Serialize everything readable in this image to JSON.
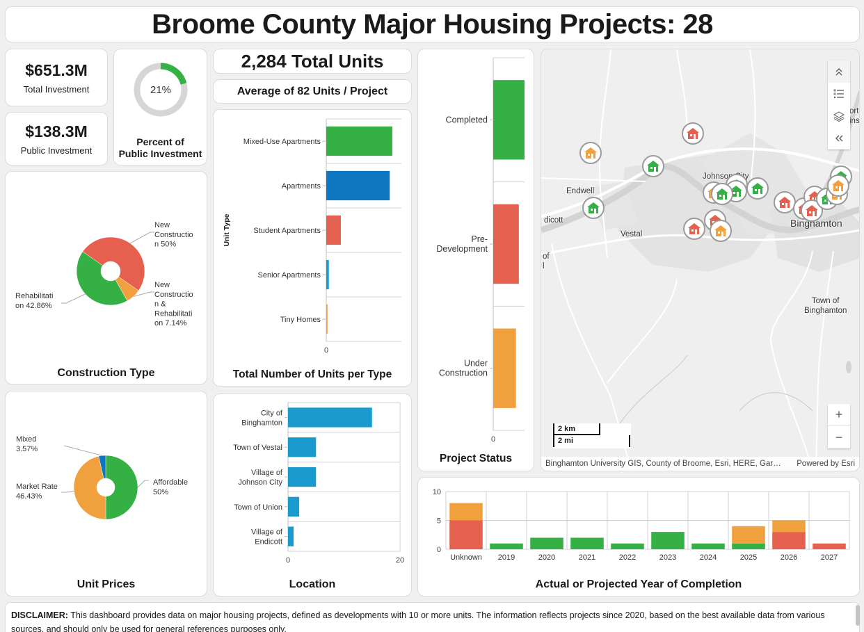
{
  "header": {
    "title": "Broome County Major Housing Projects: 28"
  },
  "colors": {
    "green": "#35b045",
    "red": "#e5604e",
    "orange": "#f0a03c",
    "blue": "#0e76c0",
    "teal": "#1a9bd0",
    "gray_ring": "#d6d6d6"
  },
  "kpis": {
    "total_investment": {
      "value": "$651.3M",
      "label": "Total Investment"
    },
    "public_investment": {
      "value": "$138.3M",
      "label": "Public Investment"
    },
    "percent_public": {
      "value": "21%",
      "fraction": 0.21,
      "label_line1": "Percent of",
      "label_line2": "Public Investment"
    },
    "total_units": {
      "value": "2,284 Total Units"
    },
    "average_units": {
      "value": "Average of 82 Units / Project"
    }
  },
  "chart_data": [
    {
      "id": "construction_type",
      "type": "pie",
      "title": "Construction Type",
      "slices": [
        {
          "label_lines": [
            "New",
            "Constructio",
            "n 50%"
          ],
          "label": "New Construction",
          "value": 50,
          "color": "#e5604e"
        },
        {
          "label_lines": [
            "New",
            "Constructio",
            "n &",
            "Rehabilitati",
            "on 7.14%"
          ],
          "label": "New Construction & Rehabilitation",
          "value": 7.14,
          "color": "#f0a03c"
        },
        {
          "label_lines": [
            "Rehabilitati",
            "on 42.86%"
          ],
          "label": "Rehabilitation",
          "value": 42.86,
          "color": "#35b045"
        }
      ]
    },
    {
      "id": "unit_prices",
      "type": "pie",
      "title": "Unit Prices",
      "slices": [
        {
          "label_lines": [
            "Affordable",
            "50%"
          ],
          "label": "Affordable",
          "value": 50,
          "color": "#35b045"
        },
        {
          "label_lines": [
            "Market Rate",
            "46.43%"
          ],
          "label": "Market Rate",
          "value": 46.43,
          "color": "#f0a03c"
        },
        {
          "label_lines": [
            "Mixed",
            "3.57%"
          ],
          "label": "Mixed",
          "value": 3.57,
          "color": "#0e76c0"
        }
      ]
    },
    {
      "id": "units_per_type",
      "type": "bar",
      "orientation": "horizontal",
      "title": "Total Number of Units per Type",
      "ylabel": "Unit Type",
      "xlabel": "",
      "x_ticks": [
        "0"
      ],
      "xlim": [
        0,
        1160
      ],
      "categories": [
        "Mixed-Use Apartments",
        "Apartments",
        "Student Apartments",
        "Senior Apartments",
        "Tiny Homes"
      ],
      "values": [
        1020,
        980,
        225,
        40,
        19
      ],
      "colors": [
        "#35b045",
        "#0e76c0",
        "#e5604e",
        "#1a9bd0",
        "#f0a03c"
      ],
      "grid": true
    },
    {
      "id": "location",
      "type": "bar",
      "orientation": "horizontal",
      "title": "Location",
      "categories": [
        [
          "City of",
          "Binghamton"
        ],
        [
          "Town of Vestal"
        ],
        [
          "Village of",
          "Johnson City"
        ],
        [
          "Town of Union"
        ],
        [
          "Village of",
          "Endicott"
        ]
      ],
      "values": [
        15,
        5,
        5,
        2,
        1
      ],
      "xlim": [
        0,
        20
      ],
      "x_ticks": [
        "0",
        "20"
      ],
      "color": "#1a9bd0",
      "grid": true
    },
    {
      "id": "project_status",
      "type": "bar",
      "orientation": "horizontal",
      "title": "Project Status",
      "categories": [
        [
          "Completed"
        ],
        [
          "Pre-",
          "Development"
        ],
        [
          "Under",
          "Construction"
        ]
      ],
      "values": [
        11,
        9,
        8
      ],
      "xlim": [
        0,
        11
      ],
      "x_ticks": [
        "0"
      ],
      "colors": [
        "#35b045",
        "#e5604e",
        "#f0a03c"
      ],
      "grid": true
    },
    {
      "id": "year_of_completion",
      "type": "bar",
      "stacked": true,
      "title": "Actual or Projected Year of Completion",
      "categories": [
        "Unknown",
        "2019",
        "2020",
        "2021",
        "2022",
        "2023",
        "2024",
        "2025",
        "2026",
        "2027"
      ],
      "ylim": [
        0,
        10
      ],
      "y_ticks": [
        "0",
        "5",
        "10"
      ],
      "series": [
        {
          "name": "Completed",
          "color": "#35b045",
          "values": [
            0,
            1,
            2,
            2,
            1,
            3,
            1,
            1,
            0,
            0
          ]
        },
        {
          "name": "Pre-Development",
          "color": "#e5604e",
          "values": [
            5,
            0,
            0,
            0,
            0,
            0,
            0,
            0,
            3,
            1
          ]
        },
        {
          "name": "Under Construction",
          "color": "#f0a03c",
          "values": [
            3,
            0,
            0,
            0,
            0,
            0,
            0,
            3,
            2,
            0
          ]
        }
      ],
      "grid": true
    }
  ],
  "map": {
    "labels": {
      "endwell": "Endwell",
      "endicott": "dicott",
      "johnson_city": "Johnson City",
      "vestal": "Vestal",
      "binghamton": "Binghamton",
      "town_of_binghamton_1": "Town of",
      "town_of_binghamton_2": "Binghamton",
      "port_dickinson_1": "ort",
      "port_dickinson_2": "ins",
      "town_of_1": "of",
      "town_of_2": "l"
    },
    "scale_km": "2 km",
    "scale_mi": "2 mi",
    "attribution": "Binghamton University GIS, County of Broome, Esri, HERE, Gar…",
    "powered_by": "Powered by Esri",
    "controls": {
      "collapse": "collapse-icon",
      "legend": "legend-icon",
      "layers": "layers-icon",
      "expand": "expand-icon",
      "zoom_in": "+",
      "zoom_out": "−"
    },
    "markers": [
      {
        "status": "Under Construction",
        "color": "#f0a03c"
      },
      {
        "status": "Completed",
        "color": "#35b045"
      },
      {
        "status": "Pre-Development",
        "color": "#e5604e"
      },
      {
        "status": "Completed",
        "color": "#35b045"
      },
      {
        "status": "Completed",
        "color": "#35b045"
      },
      {
        "status": "Under Construction",
        "color": "#f0a03c"
      },
      {
        "status": "Completed",
        "color": "#35b045"
      },
      {
        "status": "Completed",
        "color": "#35b045"
      },
      {
        "status": "Pre-Development",
        "color": "#e5604e"
      },
      {
        "status": "Pre-Development",
        "color": "#e5604e"
      },
      {
        "status": "Under Construction",
        "color": "#f0a03c"
      },
      {
        "status": "Pre-Development",
        "color": "#e5604e"
      },
      {
        "status": "Pre-Development",
        "color": "#e5604e"
      },
      {
        "status": "Pre-Development",
        "color": "#e5604e"
      },
      {
        "status": "Pre-Development",
        "color": "#e5604e"
      },
      {
        "status": "Completed",
        "color": "#35b045"
      },
      {
        "status": "Under Construction",
        "color": "#f0a03c"
      },
      {
        "status": "Completed",
        "color": "#35b045"
      },
      {
        "status": "Under Construction",
        "color": "#f0a03c"
      },
      {
        "status": "Completed",
        "color": "#35b045"
      }
    ]
  },
  "disclaimer": {
    "label": "DISCLAIMER:",
    "text": " This dashboard provides data on major housing projects, defined as developments with 10 or more units. The information reflects projects since 2020, based on the best available data from various sources, and should only be used for general references purposes only."
  }
}
